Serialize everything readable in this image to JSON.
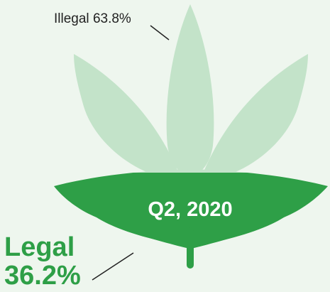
{
  "chart_data": {
    "type": "pie",
    "center_label": "Q2, 2020",
    "slices": [
      {
        "name": "Illegal",
        "value": 63.8,
        "unit": "%",
        "color": "#c3e3c9"
      },
      {
        "name": "Legal",
        "value": 36.2,
        "unit": "%",
        "color": "#2e9f47"
      }
    ]
  }
}
